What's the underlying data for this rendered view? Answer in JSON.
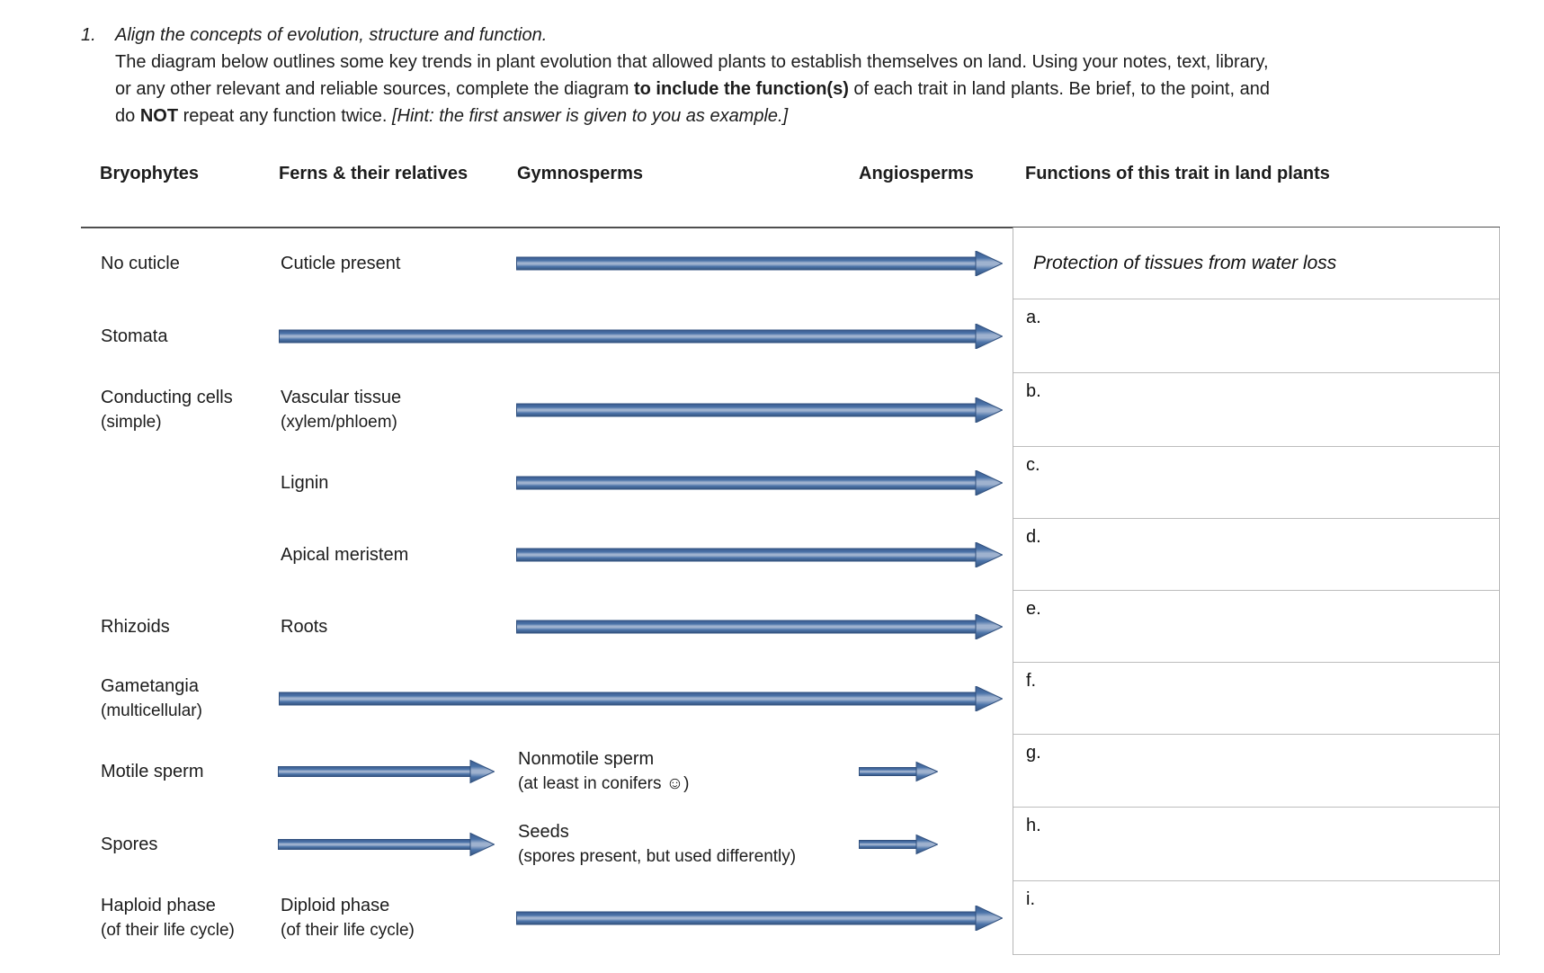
{
  "instructions": {
    "number": "1.",
    "lines": [
      [
        {
          "t": "Align the concepts of evolution, structure and function.",
          "i": true
        }
      ],
      [
        {
          "t": "The diagram below outlines some key trends in plant evolution that allowed plants to establish themselves on land. Using your notes, text, library,"
        }
      ],
      [
        {
          "t": "or any other relevant and reliable sources, complete the diagram "
        },
        {
          "t": "to include the function(s)",
          "b": true
        },
        {
          "t": " of each trait in land plants. Be brief, to the point, and"
        }
      ],
      [
        {
          "t": "do "
        },
        {
          "t": "NOT",
          "b": true
        },
        {
          "t": " repeat any function twice. "
        },
        {
          "t": "[Hint: the first answer is given to you as example.]",
          "i": true
        }
      ]
    ]
  },
  "column_headers": [
    "Bryophytes",
    "Ferns & their relatives",
    "Gymnosperms",
    "Angiosperms",
    "Functions of this trait in land plants"
  ],
  "diagram": {
    "rows": [
      {
        "bryophytes": [
          "No cuticle"
        ],
        "ferns": [
          "Cuticle present"
        ],
        "arrows": [
          "gym-to-angio"
        ],
        "function": {
          "text": "Protection of tissues from water loss"
        }
      },
      {
        "bryophytes": [
          "Stomata"
        ],
        "arrows": [
          "fern-to-angio"
        ],
        "function": {
          "label": "a."
        }
      },
      {
        "bryophytes": [
          "Conducting cells",
          "(simple)"
        ],
        "ferns": [
          "Vascular tissue",
          "(xylem/phloem)"
        ],
        "arrows": [
          "gym-to-angio"
        ],
        "function": {
          "label": "b."
        }
      },
      {
        "ferns": [
          "Lignin"
        ],
        "arrows": [
          "gym-to-angio"
        ],
        "function": {
          "label": "c."
        }
      },
      {
        "ferns": [
          "Apical meristem"
        ],
        "arrows": [
          "gym-to-angio"
        ],
        "function": {
          "label": "d."
        }
      },
      {
        "bryophytes": [
          "Rhizoids"
        ],
        "ferns": [
          "Roots"
        ],
        "arrows": [
          "gym-to-angio"
        ],
        "function": {
          "label": "e."
        }
      },
      {
        "bryophytes": [
          "Gametangia",
          "(multicellular)"
        ],
        "arrows": [
          "fern-to-angio"
        ],
        "function": {
          "label": "f."
        }
      },
      {
        "bryophytes": [
          "Motile sperm"
        ],
        "gymnosperms": [
          "Nonmotile sperm",
          "(at least in conifers ☺)"
        ],
        "arrows": [
          "fern-to-gym",
          "angio-short"
        ],
        "function": {
          "label": "g."
        }
      },
      {
        "bryophytes": [
          "Spores"
        ],
        "gymnosperms": [
          "Seeds",
          "(spores present, but used differently)"
        ],
        "arrows": [
          "fern-to-gym",
          "angio-short"
        ],
        "function": {
          "label": "h."
        }
      },
      {
        "bryophytes": [
          "Haploid phase",
          "(of their life cycle)"
        ],
        "ferns": [
          "Diploid phase",
          "(of their life cycle)"
        ],
        "arrows": [
          "gym-to-angio"
        ],
        "function": {
          "label": "i."
        }
      }
    ]
  },
  "colors": {
    "arrow_blue": "#4c74a9",
    "arrow_dark": "#31517f",
    "arrow_darker_edge": "#3a5b8f",
    "arrow_light_stripe": "#9fb2cf",
    "top_rule": "#4f4f4f",
    "cell_border": "#bdbdbd"
  }
}
